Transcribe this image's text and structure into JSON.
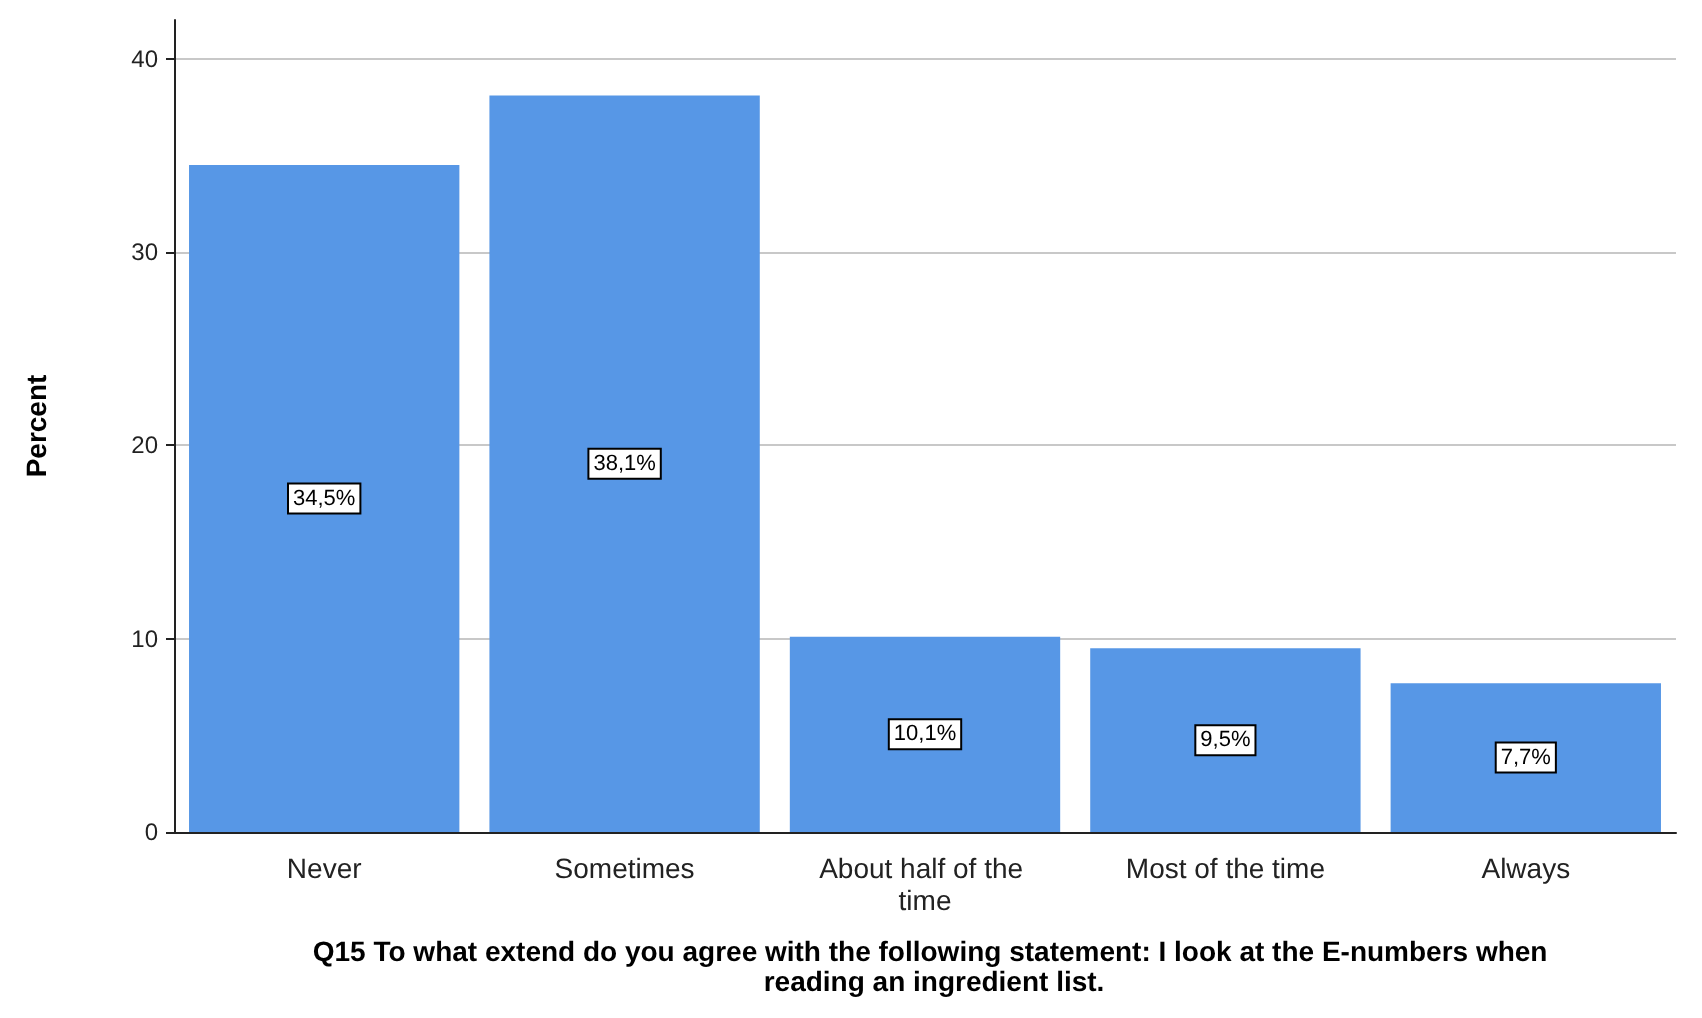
{
  "chart_data": {
    "type": "bar",
    "xlabel": "Q15 To what extend do you agree with the following statement: I look at the E-numbers when reading an ingredient list.",
    "ylabel": "Percent",
    "categories": [
      "Never",
      "Sometimes",
      "About half of the time",
      "Most of the time",
      "Always"
    ],
    "values": [
      34.5,
      38.1,
      10.1,
      9.5,
      7.7
    ],
    "value_labels": [
      "34,5%",
      "38,1%",
      "10,1%",
      "9,5%",
      "7,7%"
    ],
    "color": "#5797e6",
    "ylim": [
      0,
      42
    ],
    "yticks": [
      0,
      10,
      20,
      30,
      40
    ],
    "grid": "y"
  }
}
